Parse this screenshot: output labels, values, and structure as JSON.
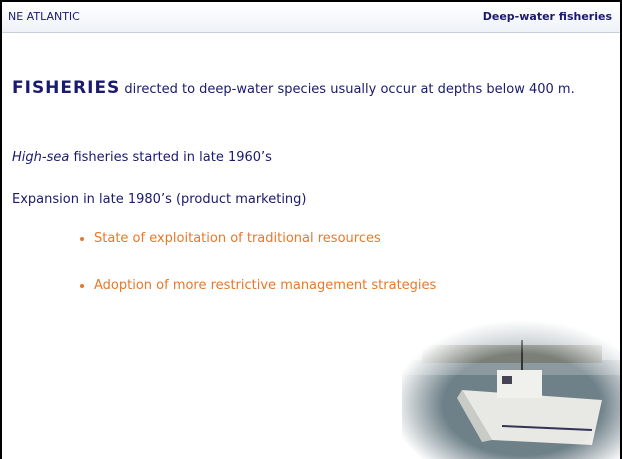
{
  "header": {
    "left": "NE ATLANTIC",
    "right": "Deep-water fisheries"
  },
  "body": {
    "paragraphs": [
      {
        "lead": "FISHERIES",
        "text": " directed to deep-water species usually occur at depths below 400 m."
      },
      {
        "lead": "High-sea",
        "text": " fisheries started in late 1960’s"
      },
      {
        "text": "Expansion in late 1980’s (product marketing)"
      }
    ],
    "bullets": [
      "State of exploitation of traditional resources",
      "Adoption of more restrictive management strategies"
    ]
  }
}
